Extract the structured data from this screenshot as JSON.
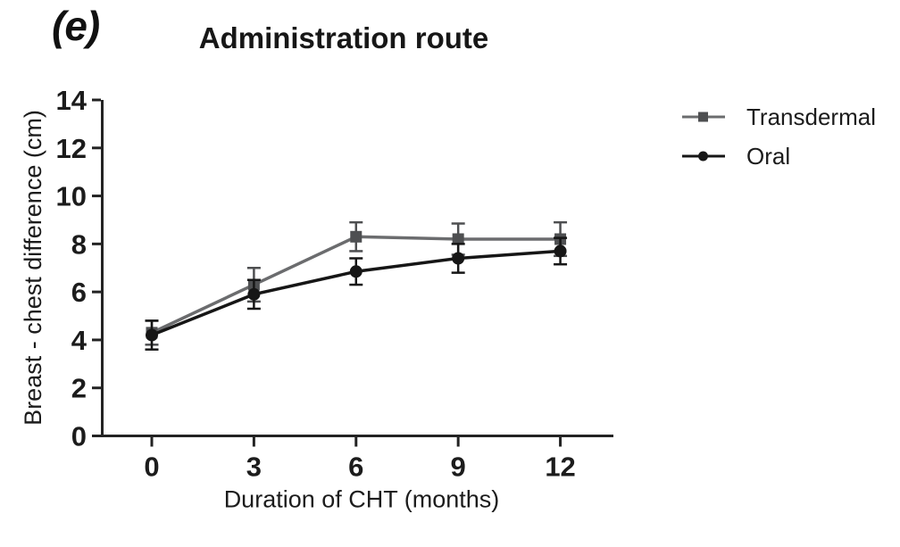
{
  "panel_label": "(e)",
  "title": "Administration route",
  "colors": {
    "transdermal_marker": "#4e4f51",
    "transdermal_line": "#6b6c6e",
    "oral": "#161616",
    "axis": "#232323"
  },
  "chart_data": {
    "type": "line",
    "title": "Administration route",
    "panel_label": "(e)",
    "xlabel": "Duration of CHT (months)",
    "ylabel": "Breast - chest difference (cm)",
    "x": [
      0,
      3,
      6,
      9,
      12
    ],
    "xticks": [
      0,
      3,
      6,
      9,
      12
    ],
    "yticks": [
      0,
      2,
      4,
      6,
      8,
      10,
      12,
      14
    ],
    "ylim": [
      0,
      14
    ],
    "grid": false,
    "error_bars": true,
    "legend_position": "right",
    "series": [
      {
        "name": "Transdermal",
        "marker": "square",
        "color": "#4e4f51",
        "line_color": "#6b6c6e",
        "values": [
          4.3,
          6.3,
          8.3,
          8.2,
          8.2
        ],
        "errors": [
          0.5,
          0.7,
          0.6,
          0.65,
          0.7
        ]
      },
      {
        "name": "Oral",
        "marker": "circle",
        "color": "#161616",
        "line_color": "#161616",
        "values": [
          4.2,
          5.9,
          6.85,
          7.4,
          7.7
        ],
        "errors": [
          0.6,
          0.6,
          0.55,
          0.6,
          0.55
        ]
      }
    ]
  }
}
